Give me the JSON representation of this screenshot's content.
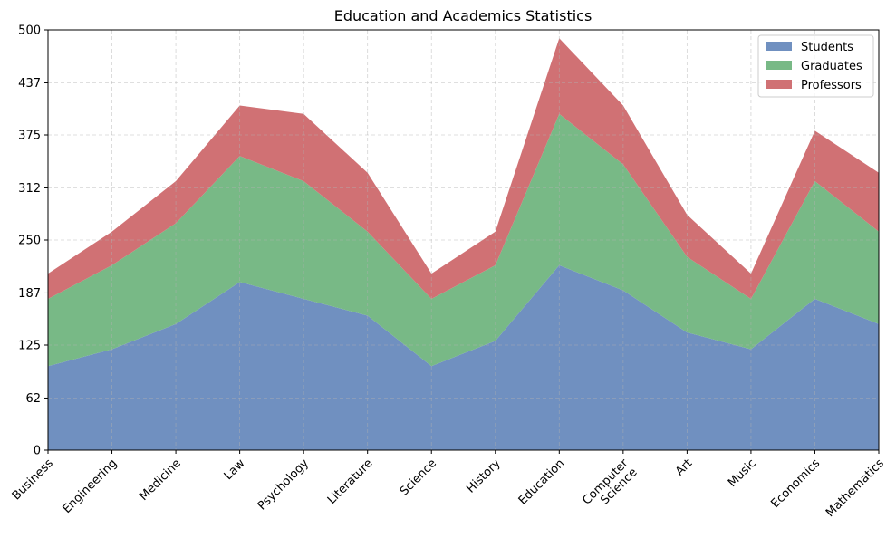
{
  "chart_data": {
    "type": "area",
    "stacked": true,
    "title": "Education and Academics Statistics",
    "xlabel": "",
    "ylabel": "",
    "categories": [
      "Business",
      "Engineering",
      "Medicine",
      "Law",
      "Psychology",
      "Literature",
      "Science",
      "History",
      "Education",
      "Computer\nScience",
      "Art",
      "Music",
      "Economics",
      "Mathematics"
    ],
    "ylim": [
      0,
      500
    ],
    "yticks": [
      0,
      62,
      125,
      187,
      250,
      312,
      375,
      437,
      500
    ],
    "grid": true,
    "legend_position": "top-right",
    "series": [
      {
        "name": "Students",
        "color": "#7090c0",
        "values": [
          100,
          120,
          150,
          200,
          180,
          160,
          100,
          130,
          220,
          190,
          140,
          120,
          180,
          150
        ]
      },
      {
        "name": "Graduates",
        "color": "#78b986",
        "values": [
          80,
          100,
          120,
          150,
          140,
          100,
          80,
          90,
          180,
          150,
          90,
          60,
          140,
          110
        ]
      },
      {
        "name": "Professors",
        "color": "#d07174",
        "values": [
          30,
          40,
          50,
          60,
          80,
          70,
          30,
          40,
          90,
          70,
          50,
          30,
          60,
          70
        ]
      }
    ]
  }
}
